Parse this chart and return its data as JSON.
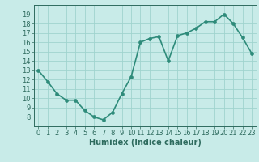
{
  "x": [
    0,
    1,
    2,
    3,
    4,
    5,
    6,
    7,
    8,
    9,
    10,
    11,
    12,
    13,
    14,
    15,
    16,
    17,
    18,
    19,
    20,
    21,
    22,
    23
  ],
  "y": [
    13.0,
    11.8,
    10.5,
    9.8,
    9.8,
    8.7,
    8.0,
    7.7,
    8.5,
    10.5,
    12.3,
    16.0,
    16.4,
    16.6,
    14.0,
    16.7,
    17.0,
    17.5,
    18.2,
    18.2,
    19.0,
    18.0,
    16.5,
    14.8
  ],
  "xlim": [
    -0.5,
    23.5
  ],
  "ylim": [
    7.0,
    20.0
  ],
  "yticks": [
    8,
    9,
    10,
    11,
    12,
    13,
    14,
    15,
    16,
    17,
    18,
    19
  ],
  "xticks": [
    0,
    1,
    2,
    3,
    4,
    5,
    6,
    7,
    8,
    9,
    10,
    11,
    12,
    13,
    14,
    15,
    16,
    17,
    18,
    19,
    20,
    21,
    22,
    23
  ],
  "xlabel": "Humidex (Indice chaleur)",
  "line_color": "#2e8b7a",
  "marker_color": "#2e8b7a",
  "bg_color": "#c8ebe8",
  "grid_color": "#a0d4ce",
  "title_color": "#2e6b5e",
  "xlabel_fontsize": 7,
  "tick_fontsize": 6,
  "line_width": 1.2,
  "marker_size": 2.8
}
